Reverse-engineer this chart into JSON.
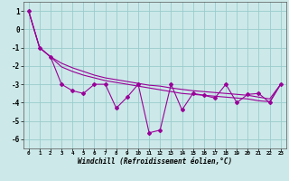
{
  "xlabel": "Windchill (Refroidissement éolien,°C)",
  "background_color": "#cce8e8",
  "grid_color": "#99cccc",
  "line_color": "#990099",
  "x": [
    0,
    1,
    2,
    3,
    4,
    5,
    6,
    7,
    8,
    9,
    10,
    11,
    12,
    13,
    14,
    15,
    16,
    17,
    18,
    19,
    20,
    21,
    22,
    23
  ],
  "y_jagged": [
    1.0,
    -1.0,
    -1.5,
    -3.0,
    -3.35,
    -3.5,
    -3.0,
    -3.0,
    -4.3,
    -3.7,
    -3.0,
    -5.65,
    -5.5,
    -3.0,
    -4.4,
    -3.5,
    -3.6,
    -3.75,
    -3.0,
    -4.0,
    -3.55,
    -3.5,
    -4.0,
    -3.0
  ],
  "y_smooth1": [
    1.0,
    -1.0,
    -1.5,
    -1.85,
    -2.1,
    -2.3,
    -2.5,
    -2.65,
    -2.75,
    -2.85,
    -2.95,
    -3.05,
    -3.1,
    -3.2,
    -3.28,
    -3.35,
    -3.4,
    -3.45,
    -3.5,
    -3.55,
    -3.6,
    -3.7,
    -3.8,
    -3.0
  ],
  "y_smooth2": [
    1.0,
    -1.0,
    -1.5,
    -2.05,
    -2.3,
    -2.5,
    -2.65,
    -2.8,
    -2.9,
    -3.0,
    -3.1,
    -3.2,
    -3.3,
    -3.4,
    -3.5,
    -3.55,
    -3.6,
    -3.65,
    -3.7,
    -3.75,
    -3.8,
    -3.9,
    -3.95,
    -3.0
  ],
  "ylim": [
    -6.5,
    1.5
  ],
  "xlim": [
    -0.5,
    23.5
  ],
  "yticks": [
    1,
    0,
    -1,
    -2,
    -3,
    -4,
    -5,
    -6
  ],
  "xticks": [
    0,
    1,
    2,
    3,
    4,
    5,
    6,
    7,
    8,
    9,
    10,
    11,
    12,
    13,
    14,
    15,
    16,
    17,
    18,
    19,
    20,
    21,
    22,
    23
  ]
}
